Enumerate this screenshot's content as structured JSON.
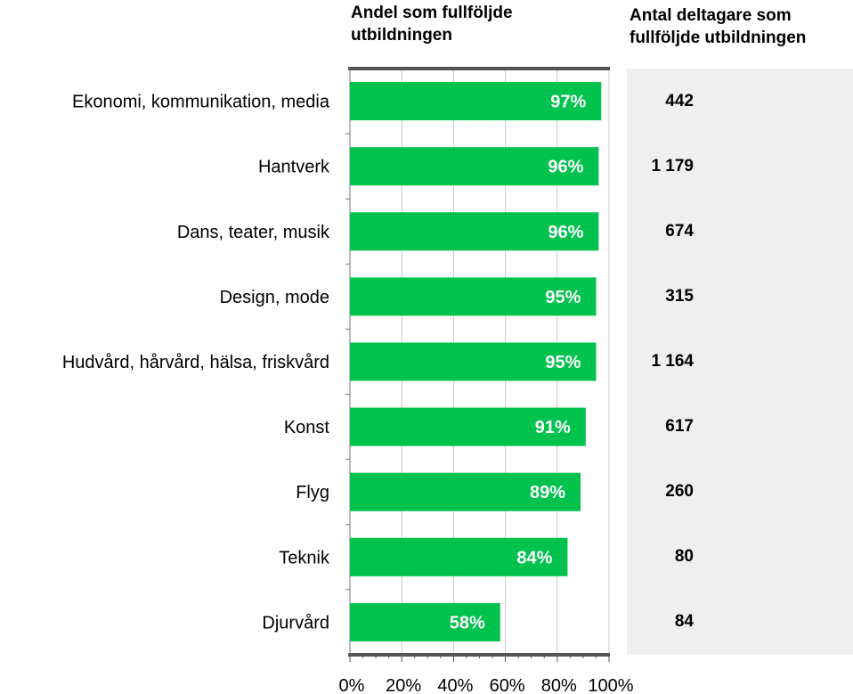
{
  "chart_data": {
    "type": "bar",
    "orientation": "horizontal",
    "title": "Andel som fullföljde utbildningen",
    "categories": [
      "Ekonomi, kommunikation, media",
      "Hantverk",
      "Dans, teater, musik",
      "Design, mode",
      "Hudvård, hårvård, hälsa, friskvård",
      "Konst",
      "Flyg",
      "Teknik",
      "Djurvård"
    ],
    "values": [
      97,
      96,
      96,
      95,
      95,
      91,
      89,
      84,
      58
    ],
    "data_labels": [
      "97%",
      "96%",
      "96%",
      "95%",
      "95%",
      "91%",
      "89%",
      "84%",
      "58%"
    ],
    "xlim": [
      0,
      100
    ],
    "x_ticks": [
      "0%",
      "20%",
      "40%",
      "60%",
      "80%",
      "100%"
    ],
    "grid": true,
    "bar_color": "#00c24d",
    "side_column": {
      "title": "Antal deltagare som fullföljde utbildningen",
      "values": [
        "442",
        "1 179",
        "674",
        "315",
        "1 164",
        "617",
        "260",
        "80",
        "84"
      ],
      "background": "#efefef"
    }
  }
}
